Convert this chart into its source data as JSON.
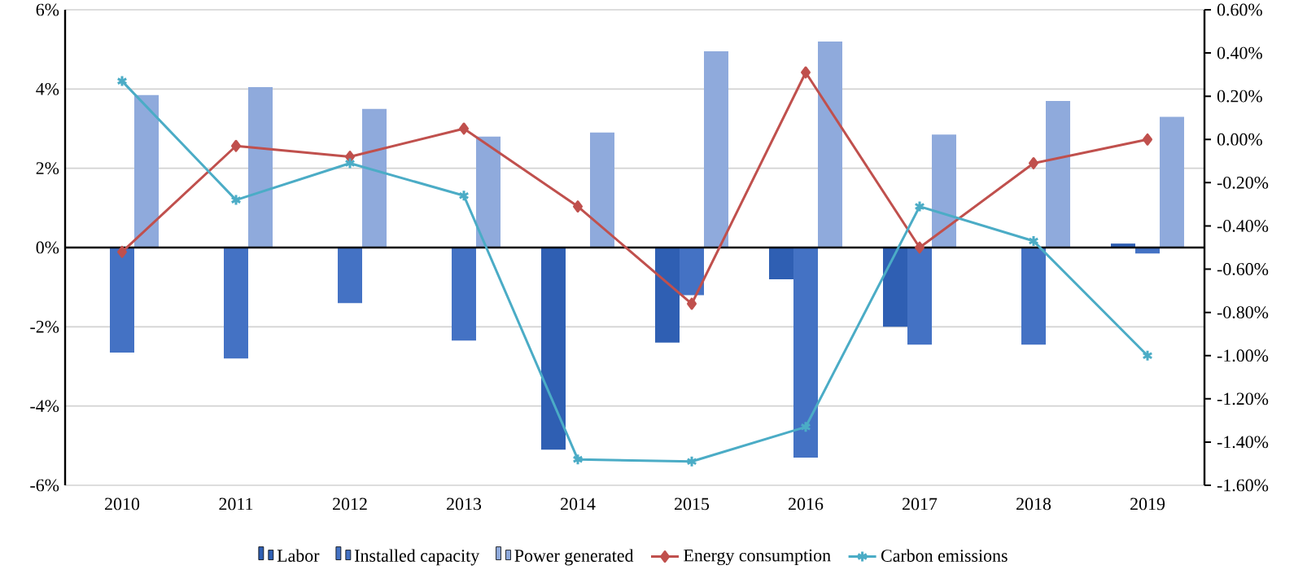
{
  "chart_data": {
    "type": "bar",
    "categories": [
      "2010",
      "2011",
      "2012",
      "2013",
      "2014",
      "2015",
      "2016",
      "2017",
      "2018",
      "2019"
    ],
    "series": [
      {
        "name": "Labor",
        "color": "#2f5fb3",
        "values": [
          0,
          0,
          0,
          0,
          -5.1,
          -2.4,
          -0.8,
          -2.0,
          0,
          0.1
        ]
      },
      {
        "name": "Installed capacity",
        "color": "#4472c4",
        "values": [
          -2.65,
          -2.8,
          -1.4,
          -2.35,
          null,
          -1.2,
          -5.3,
          -2.45,
          -2.45,
          -0.15
        ]
      },
      {
        "name": "Power generated",
        "color": "#8faadc",
        "values": [
          3.85,
          4.05,
          3.5,
          2.8,
          2.9,
          4.95,
          5.2,
          2.85,
          3.7,
          3.3
        ]
      },
      {
        "name": "Energy consumption",
        "type": "line",
        "axis": "y2",
        "marker": "diamond",
        "color": "#c0504d",
        "values": [
          -0.52,
          -0.03,
          -0.08,
          0.05,
          -0.31,
          -0.76,
          0.31,
          -0.5,
          -0.11,
          0.0
        ]
      },
      {
        "name": "Carbon emissions",
        "type": "line",
        "axis": "y2",
        "marker": "cross",
        "color": "#4bacc6",
        "values": [
          0.27,
          -0.28,
          -0.11,
          -0.26,
          -1.48,
          -1.49,
          -1.33,
          -0.31,
          -0.47,
          -1.0
        ]
      }
    ],
    "ylim": [
      -6,
      6
    ],
    "yticks": [
      {
        "value": -6,
        "label": "-6%"
      },
      {
        "value": -4,
        "label": "-4%"
      },
      {
        "value": -2,
        "label": "-2%"
      },
      {
        "value": 0,
        "label": "0%"
      },
      {
        "value": 2,
        "label": "2%"
      },
      {
        "value": 4,
        "label": "4%"
      },
      {
        "value": 6,
        "label": "6%"
      }
    ],
    "y2lim": [
      -1.6,
      0.6
    ],
    "y2ticks": [
      {
        "value": -1.6,
        "label": "-1.60%"
      },
      {
        "value": -1.4,
        "label": "-1.40%"
      },
      {
        "value": -1.2,
        "label": "-1.20%"
      },
      {
        "value": -1.0,
        "label": "-1.00%"
      },
      {
        "value": -0.8,
        "label": "-0.80%"
      },
      {
        "value": -0.6,
        "label": "-0.60%"
      },
      {
        "value": -0.4,
        "label": "-0.40%"
      },
      {
        "value": -0.2,
        "label": "-0.20%"
      },
      {
        "value": 0.0,
        "label": "0.00%"
      },
      {
        "value": 0.2,
        "label": "0.20%"
      },
      {
        "value": 0.4,
        "label": "0.40%"
      },
      {
        "value": 0.6,
        "label": "0.60%"
      }
    ],
    "grid": "y",
    "legend": "bottom"
  }
}
